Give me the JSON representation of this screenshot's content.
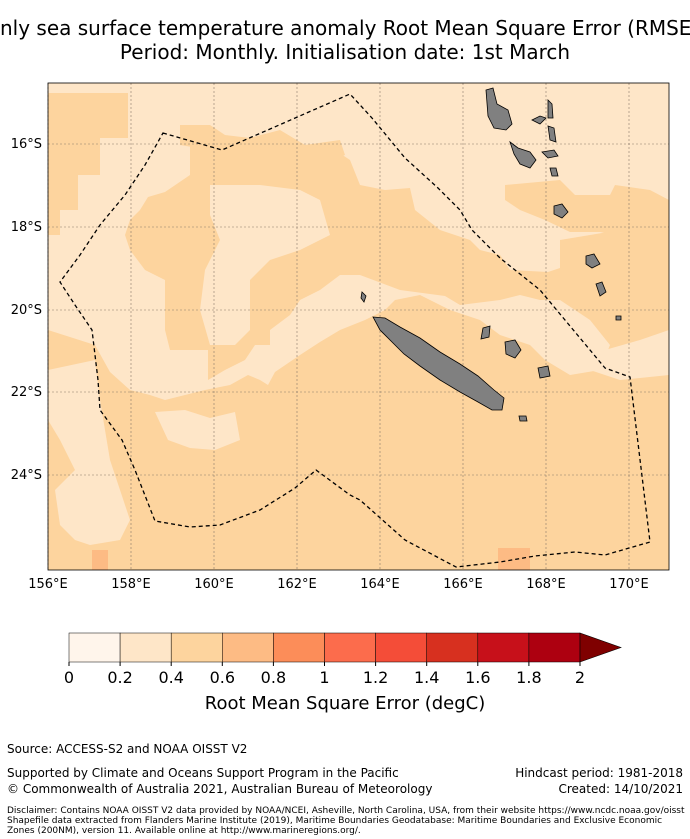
{
  "title": {
    "line1": "nly sea surface temperature anomaly Root Mean Square Error (RMSE",
    "line2": "Period: Monthly. Initialisation date: 1st March"
  },
  "map": {
    "lon_ticks": [
      "156°E",
      "158°E",
      "160°E",
      "162°E",
      "164°E",
      "166°E",
      "168°E",
      "170°E"
    ],
    "lat_ticks": [
      "16°S",
      "18°S",
      "20°S",
      "22°S",
      "24°S"
    ],
    "lon_range": [
      156,
      171
    ],
    "lat_range": [
      -26.3,
      -14.5
    ],
    "boundary_label": "Maritime boundary (dashed)",
    "colors": {
      "bin_0_0": "#fff5eb",
      "bin_0_2": "#fee6c8",
      "bin_0_4": "#fdd49e",
      "bin_0_6": "#fdbb84",
      "bin_0_8": "#fc8d59",
      "bin_1_0": "#fc6c4c",
      "bin_1_2": "#f44d38",
      "bin_1_4": "#d7301f",
      "bin_1_6": "#c7101a",
      "bin_1_8": "#ad0010",
      "extend": "#7f0000",
      "land": "#808080",
      "grid": "#8a7a6a"
    }
  },
  "colorbar": {
    "ticks": [
      "0",
      "0.2",
      "0.4",
      "0.6",
      "0.8",
      "1",
      "1.2",
      "1.4",
      "1.6",
      "1.8",
      "2"
    ],
    "label": "Root Mean Square Error (degC)"
  },
  "footer": {
    "source": "Source: ACCESS-S2 and NOAA OISST V2",
    "support": "Supported by Climate and Oceans Support Program in the Pacific",
    "copyright": "© Commonwealth of Australia 2021, Australian Bureau of Meteorology",
    "hindcast": "Hindcast period: 1981-2018",
    "created": "Created: 14/10/2021",
    "disclaimer1": "Disclaimer: Contains NOAA OISST V2 data provided by NOAA/NCEI, Asheville, North Carolina, USA, from their website https://www.ncdc.noaa.gov/oisst",
    "disclaimer2": "Shapefile data extracted from Flanders Marine Institute (2019), Maritime Boundaries Geodatabase: Maritime Boundaries and Exclusive Economic",
    "disclaimer3": "Zones (200NM), version 11. Available online at http://www.marineregions.org/."
  }
}
